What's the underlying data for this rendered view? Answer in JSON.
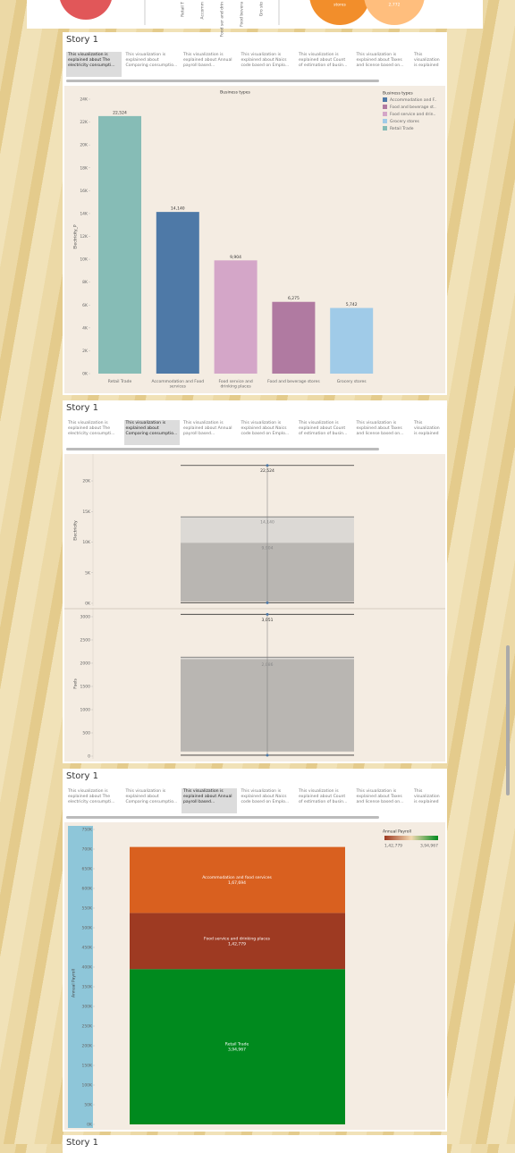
{
  "top_fragment": {
    "labels": [
      "stores",
      "2,772"
    ],
    "axis_labels": [
      "Retail T",
      "Accomm",
      "Food ser and drin",
      "Food bevera",
      "Gro sto"
    ]
  },
  "stories": [
    {
      "title": "Story 1",
      "selected_tab": 0,
      "tabs": [
        "This visualization is explained about The electricity consumpti...",
        "This visualization is explained about Comparing consumptio...",
        "This visualization is explained about Annual payroll based...",
        "This visualization is explained about Naics code based on Emplo...",
        "This visualization is explained about Count of estimation of busin...",
        "This visualization is explained about Taxes and license based on...",
        "This visualization is explained"
      ]
    },
    {
      "title": "Story 1",
      "selected_tab": 1,
      "tabs": [
        "This visualization is explained about The electricity consumpti...",
        "This visualization is explained about Comparing consumptio...",
        "This visualization is explained about Annual payroll based...",
        "This visualization is explained about Naics code based on Emplo...",
        "This visualization is explained about Count of estimation of busin...",
        "This visualization is explained about Taxes and license based on...",
        "This visualization is explained"
      ]
    },
    {
      "title": "Story 1",
      "selected_tab": 2,
      "tabs": [
        "This visualization is explained about The electricity consumpti...",
        "This visualization is explained about Comparing consumptio...",
        "This visualization is explained about Annual payroll based...",
        "This visualization is explained about Naics code based on Emplo...",
        "This visualization is explained about Count of estimation of busin...",
        "This visualization is explained about Taxes and license based on...",
        "This visualization is explained"
      ]
    },
    {
      "title": "Story 1"
    }
  ],
  "chart_data": [
    {
      "type": "bar",
      "title": "Business types",
      "y_label": "Electricity_P",
      "categories": [
        "Retail Trade",
        "Accommodation and Food services",
        "Food service and drinking places",
        "Food and beverage stores",
        "Grocery stores"
      ],
      "values": [
        22524,
        14140,
        9904,
        6275,
        5742
      ],
      "value_labels": [
        "22,524",
        "14,140",
        "9,904",
        "6,275",
        "5,742"
      ],
      "colors": [
        "#86bcb6",
        "#4e79a7",
        "#d4a6c8",
        "#b07aa1",
        "#a0cbe8"
      ],
      "ylim": [
        0,
        24000
      ],
      "yticks": [
        {
          "value": 0,
          "label": "0K"
        },
        {
          "value": 2000,
          "label": "2K"
        },
        {
          "value": 4000,
          "label": "4K"
        },
        {
          "value": 6000,
          "label": "6K"
        },
        {
          "value": 8000,
          "label": "8K"
        },
        {
          "value": 10000,
          "label": "10K"
        },
        {
          "value": 12000,
          "label": "12K"
        },
        {
          "value": 14000,
          "label": "14K"
        },
        {
          "value": 16000,
          "label": "16K"
        },
        {
          "value": 18000,
          "label": "18K"
        },
        {
          "value": 20000,
          "label": "20K"
        },
        {
          "value": 22000,
          "label": "22K"
        },
        {
          "value": 24000,
          "label": "24K"
        }
      ],
      "legend": {
        "title": "Business types",
        "entries": [
          {
            "label": "Accommodation and F..",
            "color": "#4e79a7"
          },
          {
            "label": "Food and beverage st..",
            "color": "#b07aa1"
          },
          {
            "label": "Food service and drin..",
            "color": "#d4a6c8"
          },
          {
            "label": "Grocery stores",
            "color": "#a0cbe8"
          },
          {
            "label": "Retail Trade",
            "color": "#86bcb6"
          }
        ]
      }
    },
    {
      "type": "box",
      "y_label": "Electricity",
      "box": {
        "min": 100,
        "q1": 300,
        "median": 9904,
        "q3": 14140,
        "max": 22524
      },
      "value_labels": {
        "max": "22,524",
        "q3": "14,140",
        "median": "9,904"
      },
      "ylim": [
        0,
        23800
      ],
      "yticks": [
        {
          "value": 0,
          "label": "0K"
        },
        {
          "value": 5000,
          "label": "5K"
        },
        {
          "value": 10000,
          "label": "10K"
        },
        {
          "value": 15000,
          "label": "15K"
        },
        {
          "value": 20000,
          "label": "20K"
        }
      ]
    },
    {
      "type": "box",
      "y_label": "Fuels",
      "box": {
        "min": 20,
        "q1": 100,
        "median": 2086,
        "q3": 2130,
        "max": 3051
      },
      "value_labels": {
        "max": "3,051",
        "median": "2,086"
      },
      "ylim": [
        0,
        3115
      ],
      "yticks": [
        0,
        500,
        1000,
        1500,
        2000,
        2500,
        3000
      ]
    },
    {
      "type": "stacked_bar",
      "y_label": "Annual Payroll",
      "series": [
        {
          "name": "Retail Trade",
          "color": "#008a1e",
          "values": [
            394967
          ],
          "value_labels": [
            "3,94,967"
          ]
        },
        {
          "name": "Food service and drinking places",
          "color": "#9e3a22",
          "values": [
            142779
          ],
          "value_labels": [
            "1,42,779"
          ]
        },
        {
          "name": "Accommodation and food services",
          "color": "#d9601f",
          "values": [
            167694
          ],
          "value_labels": [
            "1,67,694"
          ]
        }
      ],
      "ylim": [
        0,
        750000
      ],
      "yticks": [
        {
          "value": 0,
          "label": "0K"
        },
        {
          "value": 50000,
          "label": "50K"
        },
        {
          "value": 100000,
          "label": "100K"
        },
        {
          "value": 150000,
          "label": "150K"
        },
        {
          "value": 200000,
          "label": "200K"
        },
        {
          "value": 250000,
          "label": "250K"
        },
        {
          "value": 300000,
          "label": "300K"
        },
        {
          "value": 350000,
          "label": "350K"
        },
        {
          "value": 400000,
          "label": "400K"
        },
        {
          "value": 450000,
          "label": "450K"
        },
        {
          "value": 500000,
          "label": "500K"
        },
        {
          "value": 550000,
          "label": "550K"
        },
        {
          "value": 600000,
          "label": "600K"
        },
        {
          "value": 650000,
          "label": "650K"
        },
        {
          "value": 700000,
          "label": "700K"
        },
        {
          "value": 750000,
          "label": "750K"
        }
      ],
      "legend": {
        "title": "Annual Payroll"
      }
    }
  ]
}
